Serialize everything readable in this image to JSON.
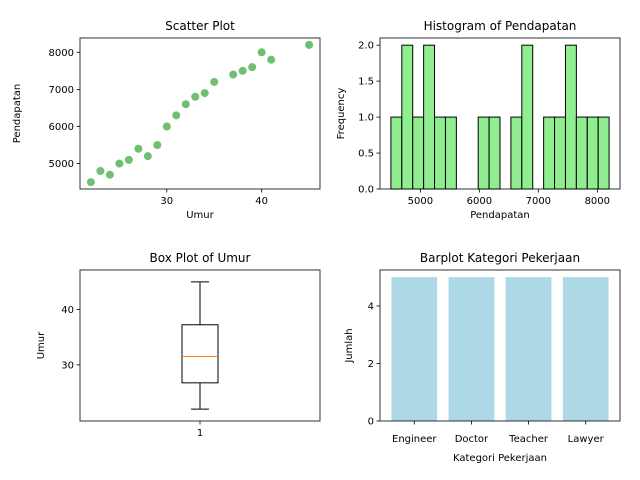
{
  "chart_data": [
    {
      "type": "scatter",
      "title": "Scatter Plot",
      "xlabel": "Umur",
      "ylabel": "Pendapatan",
      "xlim": [
        20.85,
        46.15
      ],
      "ylim": [
        4315,
        8385
      ],
      "xticks": [
        30,
        40
      ],
      "yticks": [
        5000,
        6000,
        7000,
        8000
      ],
      "color": "#4caf50",
      "x": [
        22,
        23,
        24,
        25,
        26,
        27,
        28,
        29,
        30,
        31,
        32,
        33,
        34,
        35,
        37,
        38,
        39,
        40,
        41,
        45
      ],
      "y": [
        4500,
        4800,
        4700,
        5000,
        5100,
        5400,
        5200,
        5500,
        6000,
        6300,
        6600,
        6800,
        6900,
        7200,
        7400,
        7500,
        7600,
        8000,
        7800,
        8200
      ]
    },
    {
      "type": "bar",
      "subtype": "histogram",
      "title": "Histogram of Pendapatan",
      "xlabel": "Pendapatan",
      "ylabel": "Frequency",
      "xlim": [
        4315,
        8385
      ],
      "ylim": [
        0,
        2.1
      ],
      "xticks": [
        5000,
        6000,
        7000,
        8000
      ],
      "yticks": [
        0.0,
        0.5,
        1.0,
        1.5,
        2.0
      ],
      "ytick_labels": [
        "0.0",
        "0.5",
        "1.0",
        "1.5",
        "2.0"
      ],
      "bin_start": 4500,
      "bin_width": 185,
      "counts": [
        1,
        2,
        1,
        2,
        1,
        1,
        0,
        0,
        1,
        1,
        0,
        1,
        2,
        0,
        1,
        1,
        2,
        1,
        1,
        1
      ],
      "color": "#90ee90",
      "edge_color": "#000000"
    },
    {
      "type": "box",
      "title": "Box Plot of Umur",
      "ylabel": "Umur",
      "xticks": [
        "1"
      ],
      "ylim": [
        19.85,
        47.15
      ],
      "yticks": [
        30,
        40
      ],
      "min": 22,
      "q1": 26.75,
      "median": 31.5,
      "q3": 37.25,
      "max": 45,
      "median_color": "#ff7f0e"
    },
    {
      "type": "bar",
      "title": "Barplot Kategori Pekerjaan",
      "xlabel": "Kategori Pekerjaan",
      "ylabel": "Jumlah",
      "categories": [
        "Engineer",
        "Doctor",
        "Teacher",
        "Lawyer"
      ],
      "values": [
        5,
        5,
        5,
        5
      ],
      "ylim": [
        0,
        5.25
      ],
      "yticks": [
        0,
        2,
        4
      ],
      "color": "#add8e6"
    }
  ]
}
